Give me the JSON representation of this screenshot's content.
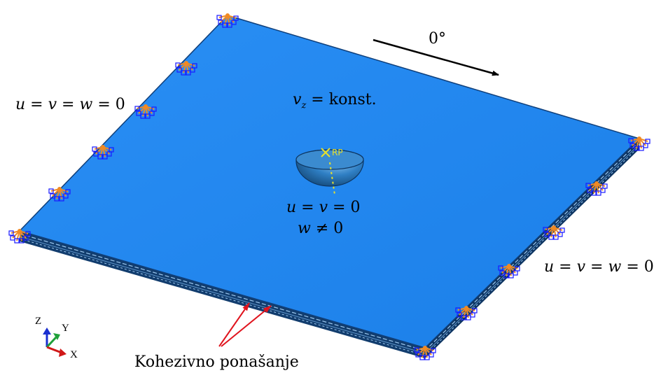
{
  "diagram": {
    "direction_label": "0°",
    "bc_left": {
      "u": "u",
      "v": "v",
      "w": "w",
      "eq": "=",
      "val": "0"
    },
    "bc_right": {
      "u": "u",
      "v": "v",
      "w": "w",
      "eq": "=",
      "val": "0"
    },
    "velocity": {
      "var": "v",
      "sub": "z",
      "eq": "=",
      "rhs": "konst."
    },
    "impactor_bc_line1": {
      "u": "u",
      "v": "v",
      "eq": "=",
      "val": "0"
    },
    "impactor_bc_line2": {
      "w": "w",
      "neq": "≠",
      "val": "0"
    },
    "reference_point": "RP",
    "cohesive_label": "Kohezivno ponašanje",
    "triad": {
      "z": "Z",
      "y": "Y",
      "x": "X"
    }
  },
  "colors": {
    "plate_top": "#1f86f0",
    "plate_edge": "#0f3f7a",
    "boundary_orange": "#f08a24",
    "boundary_blue": "#1a1aff",
    "arrow_red": "#e0141e",
    "rp_yellow": "#e8e02a"
  }
}
